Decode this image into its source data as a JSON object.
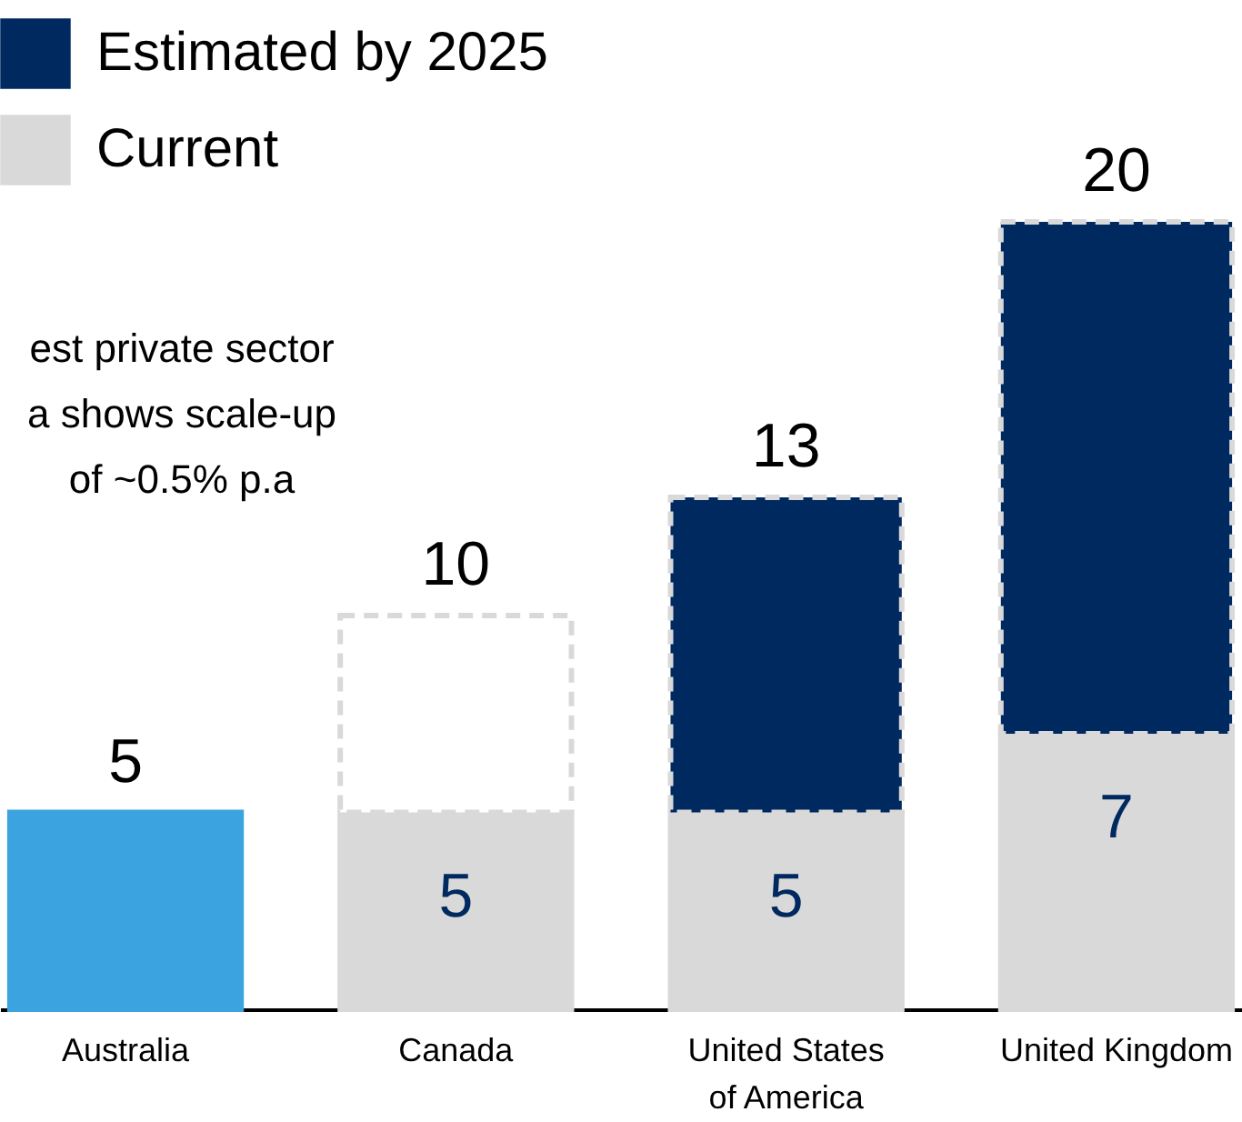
{
  "chart_data": {
    "type": "bar",
    "stacked": true,
    "categories": [
      "Australia",
      "Canada",
      "United States of America",
      "United Kingdom"
    ],
    "series": [
      {
        "name": "Current",
        "color": "#d9d9d9",
        "colors": [
          "#3ba3e0",
          "#d9d9d9",
          "#d9d9d9",
          "#d9d9d9"
        ],
        "values": [
          5,
          5,
          5,
          7
        ],
        "value_labels": [
          null,
          "5",
          "5",
          "7"
        ]
      },
      {
        "name": "Estimated by 2025",
        "color": "#002960",
        "colors": [
          null,
          "#ffffff",
          "#002960",
          "#002960"
        ],
        "values": [
          null,
          5,
          8,
          13
        ],
        "line_style": "dashed"
      }
    ],
    "totals": [
      "5",
      "10",
      "13",
      "20"
    ],
    "legend": "top left",
    "annotations": [
      "est private sector a shows scale-up of ~0.5% p.a"
    ]
  }
}
